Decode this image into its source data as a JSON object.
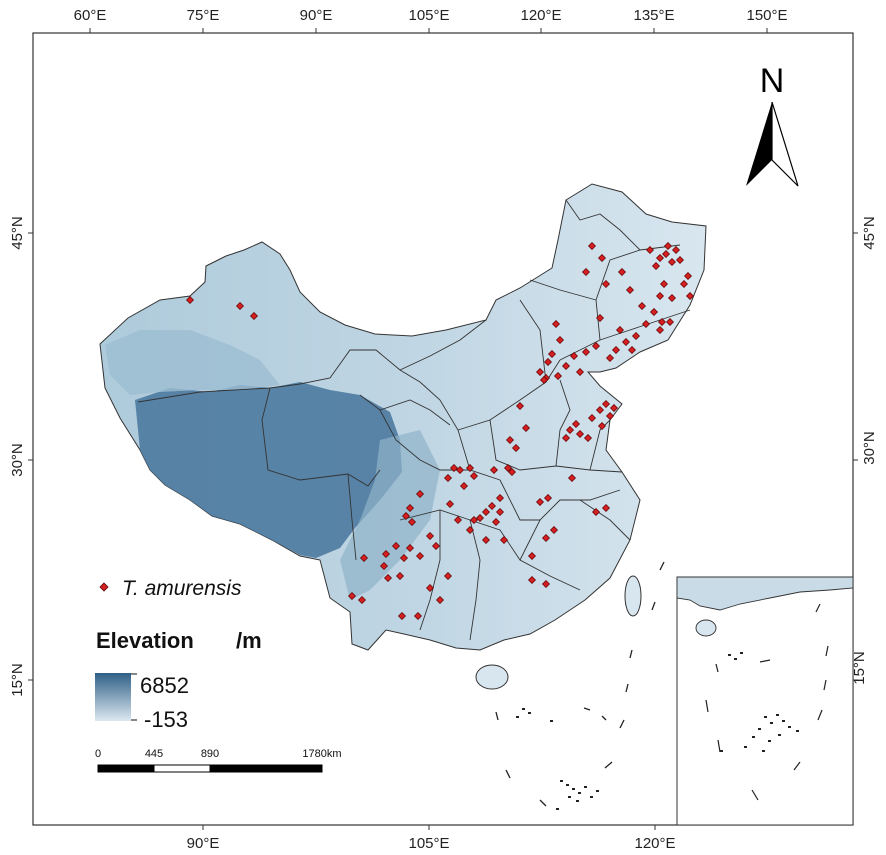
{
  "map": {
    "top_longitude_ticks": [
      "60°E",
      "75°E",
      "90°E",
      "105°E",
      "120°E",
      "135°E",
      "150°E"
    ],
    "bottom_longitude_ticks": [
      "90°E",
      "105°E",
      "120°E"
    ],
    "left_latitude_ticks": [
      "45°N",
      "30°N",
      "15°N"
    ],
    "right_latitude_ticks": [
      "45°N",
      "30°N",
      "15°N"
    ],
    "inset_latitude_tick": "15°N",
    "north_arrow_label": "N"
  },
  "legend": {
    "species_label": "T. amurensis",
    "elevation_title": "Elevation",
    "elevation_unit": "/m",
    "elevation_max": "6852",
    "elevation_min": "-153",
    "high_color": "#2f5f86",
    "low_color": "#dce8f0"
  },
  "scale_bar": {
    "labels": [
      "0",
      "445",
      "890",
      "1780km"
    ]
  },
  "colors": {
    "occurrence_point": "#d42020",
    "boundary": "#333333"
  }
}
